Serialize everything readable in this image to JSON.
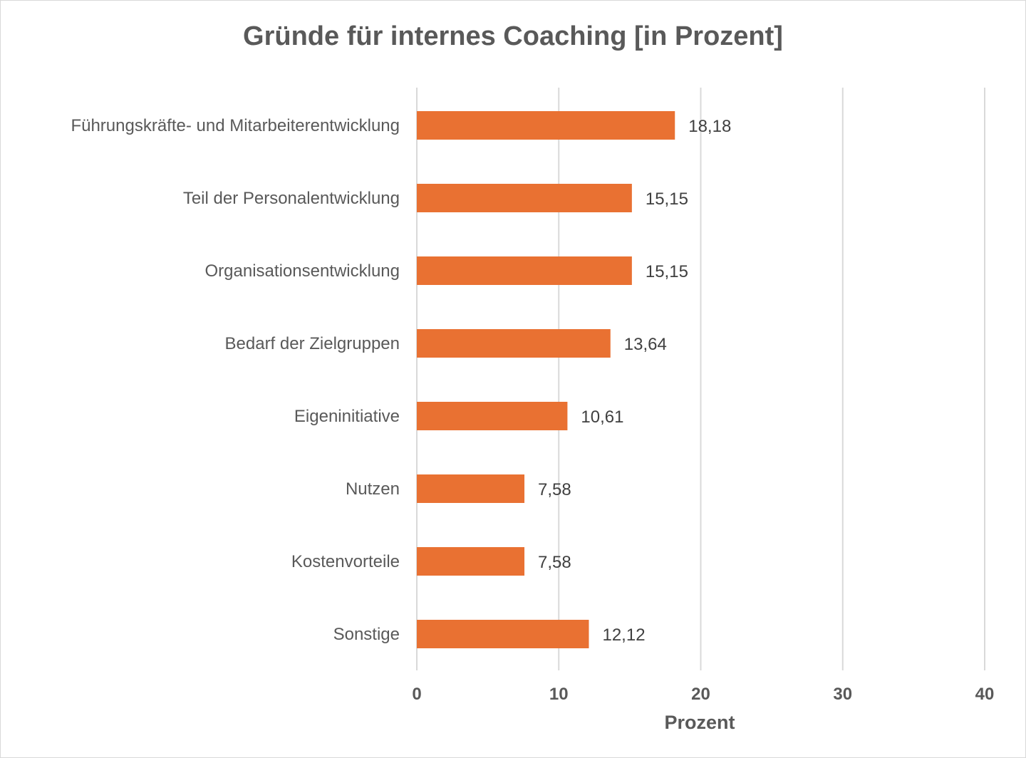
{
  "chart_data": {
    "type": "bar",
    "orientation": "horizontal",
    "title": "Gründe für internes Coaching [in Prozent]",
    "xlabel": "Prozent",
    "ylabel": "",
    "categories": [
      "Führungskräfte- und Mitarbeiterentwicklung",
      "Teil der Personalentwicklung",
      "Organisationsentwicklung",
      "Bedarf der Zielgruppen",
      "Eigeninitiative",
      "Nutzen",
      "Kostenvorteile",
      "Sonstige"
    ],
    "values": [
      18.18,
      15.15,
      15.15,
      13.64,
      10.61,
      7.58,
      7.58,
      12.12
    ],
    "value_labels": [
      "18,18",
      "15,15",
      "15,15",
      "13,64",
      "10,61",
      "7,58",
      "7,58",
      "12,12"
    ],
    "xlim": [
      0,
      40
    ],
    "xticks": [
      0,
      10,
      20,
      30,
      40
    ],
    "grid": true,
    "legend": "none",
    "colors": {
      "bar": "#E97132",
      "grid": "#D9D9D9",
      "text": "#595959"
    }
  }
}
